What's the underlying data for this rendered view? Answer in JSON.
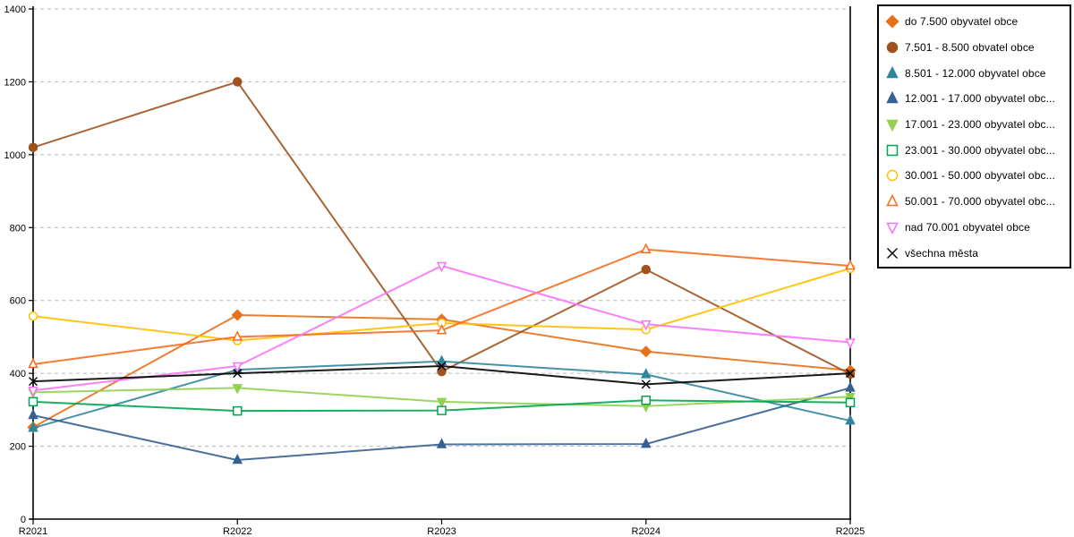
{
  "chart_data": {
    "type": "line",
    "title": "",
    "xlabel": "",
    "ylabel": "",
    "x_categories": [
      "R2021",
      "R2022",
      "R2023",
      "R2024",
      "R2025"
    ],
    "y_axis": {
      "min": 0,
      "max": 1400,
      "step": 200,
      "tick_labels": [
        "0",
        "200",
        "400",
        "600",
        "800",
        "1000",
        "1200",
        "1400"
      ]
    },
    "grid": "horizontal-dashed",
    "gridline_color": "#b8b8b8",
    "axis_color": "#000000",
    "background_color": "#ffffff",
    "legend_position": "right",
    "series": [
      {
        "name": "do 7.500 obyvatel obce",
        "color": "#e8701a",
        "marker": "diamond",
        "filled": true,
        "values": [
          252,
          560,
          548,
          460,
          408
        ]
      },
      {
        "name": "7.501 - 8.500 obvatel obce",
        "color": "#a0521e",
        "marker": "circle",
        "filled": true,
        "values": [
          1020,
          1200,
          405,
          685,
          398
        ]
      },
      {
        "name": "8.501 - 12.000 obyvatel obce",
        "color": "#31859c",
        "marker": "triangle-up",
        "filled": true,
        "values": [
          250,
          410,
          433,
          397,
          270
        ]
      },
      {
        "name": "12.001 - 17.000 obyvatel obc...",
        "color": "#376092",
        "marker": "triangle-up",
        "filled": true,
        "values": [
          285,
          162,
          205,
          206,
          360
        ]
      },
      {
        "name": "17.001 - 23.000 obyvatel obc...",
        "color": "#92d050",
        "marker": "triangle-down",
        "filled": true,
        "values": [
          348,
          360,
          322,
          310,
          336
        ]
      },
      {
        "name": "23.001 - 30.000 obyvatel obc...",
        "color": "#00a64f",
        "marker": "square",
        "filled": false,
        "values": [
          322,
          297,
          298,
          326,
          320
        ]
      },
      {
        "name": "30.001 - 50.000 obyvatel obc...",
        "color": "#ffc000",
        "marker": "circle",
        "filled": false,
        "values": [
          557,
          490,
          538,
          520,
          688
        ]
      },
      {
        "name": "50.001 - 70.000 obyvatel obc...",
        "color": "#fa6a1d",
        "marker": "triangle-up",
        "filled": false,
        "values": [
          425,
          500,
          518,
          740,
          695
        ]
      },
      {
        "name": "nad 70.001 obyvatel obce",
        "color": "#f973f9",
        "marker": "triangle-down",
        "filled": false,
        "values": [
          353,
          420,
          695,
          535,
          485
        ]
      },
      {
        "name": "všechna města",
        "color": "#000000",
        "marker": "x",
        "filled": false,
        "values": [
          378,
          400,
          420,
          370,
          400
        ]
      }
    ]
  }
}
